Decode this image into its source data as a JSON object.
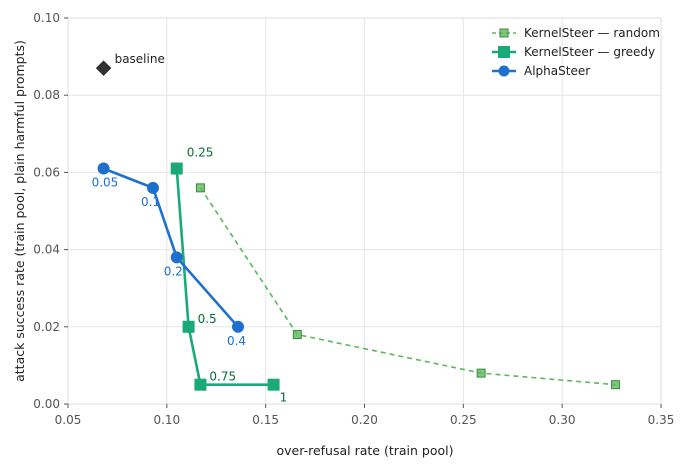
{
  "chart_data": {
    "type": "scatter",
    "xlabel": "over-refusal rate (train pool)",
    "ylabel": "attack success rate (train pool, plain harmful prompts)",
    "xlim": [
      0.05,
      0.35
    ],
    "ylim": [
      0.0,
      0.1
    ],
    "x_ticks": [
      "0.05",
      "0.10",
      "0.15",
      "0.20",
      "0.25",
      "0.30",
      "0.35"
    ],
    "y_ticks": [
      "0.00",
      "0.02",
      "0.04",
      "0.06",
      "0.08",
      "0.10"
    ],
    "grid": true,
    "legend_position": "top-right",
    "series": [
      {
        "name": "KernelSteer — random",
        "color": "#5cb85c",
        "marker": "square",
        "line_style": "dashed",
        "x": [
          0.117,
          0.166,
          0.259,
          0.327
        ],
        "y": [
          0.056,
          0.018,
          0.008,
          0.005
        ],
        "labels": [
          "",
          "",
          "",
          ""
        ]
      },
      {
        "name": "KernelSteer — greedy",
        "color": "#1aaa7a",
        "label_color": "#0a6b3a",
        "marker": "square",
        "line_style": "solid",
        "x": [
          0.105,
          0.111,
          0.117,
          0.154
        ],
        "y": [
          0.061,
          0.02,
          0.005,
          0.005
        ],
        "labels": [
          "0.25",
          "0.5",
          "0.75",
          "1"
        ]
      },
      {
        "name": "AlphaSteer",
        "color": "#1f6fcf",
        "label_color": "#1f6fcf",
        "marker": "circle",
        "line_style": "solid",
        "x": [
          0.068,
          0.093,
          0.105,
          0.136
        ],
        "y": [
          0.061,
          0.056,
          0.038,
          0.02
        ],
        "labels": [
          "0.05",
          "0.1",
          "0.2",
          "0.4"
        ]
      }
    ],
    "baseline": {
      "label": "baseline",
      "x": 0.068,
      "y": 0.087,
      "marker": "diamond",
      "color": "#333333"
    }
  }
}
